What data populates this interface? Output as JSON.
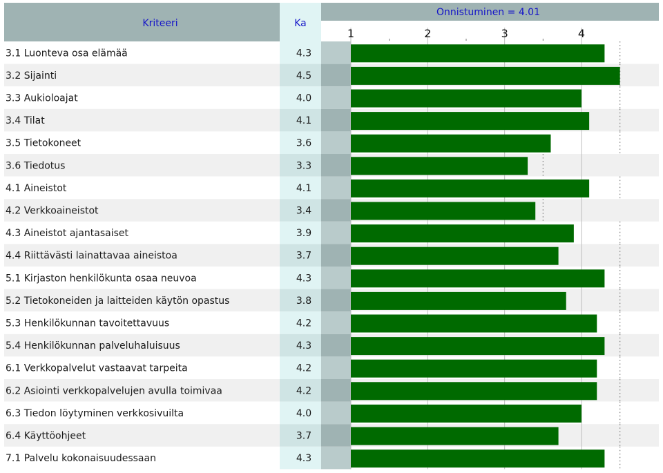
{
  "header": {
    "criteria_label": "Kriteeri",
    "mean_label": "Ka",
    "success_label": "Onnistuminen = 4.01"
  },
  "colors": {
    "bar": "#006a00",
    "header_bg": "#9fb3b3",
    "row_alt_bg": "#f0f0f0",
    "mean_col_bg": "#e0f4f4",
    "mean_col_alt_bg": "#cfe4e4",
    "gap_col_bg": "#9fb3b3",
    "gap_col_alt_bg": "#b9cbcb",
    "header_text": "#1515c8"
  },
  "chart_data": {
    "type": "bar",
    "orientation": "horizontal",
    "title": "Onnistuminen = 4.01",
    "x_ticks": [
      "1",
      "2",
      "3",
      "4"
    ],
    "xlim": [
      1,
      4.6
    ],
    "categories": [
      "3.1 Luonteva osa elämää",
      "3.2 Sijainti",
      "3.3 Aukioloajat",
      "3.4 Tilat",
      "3.5 Tietokoneet",
      "3.6 Tiedotus",
      "4.1 Aineistot",
      "4.2 Verkkoaineistot",
      "4.3 Aineistot ajantasaiset",
      "4.4 Riittävästi lainattavaa aineistoa",
      "5.1 Kirjaston henkilökunta osaa neuvoa",
      "5.2 Tietokoneiden ja laitteiden käytön opastus",
      "5.3 Henkilökunnan tavoitettavuus",
      "5.4 Henkilökunnan palveluhaluisuus",
      "6.1 Verkkopalvelut vastaavat tarpeita",
      "6.2 Asiointi verkkopalvelujen avulla toimivaa",
      "6.3 Tiedon löytyminen verkkosivuilta",
      "6.4 Käyttöohjeet",
      "7.1 Palvelu kokonaisuudessaan"
    ],
    "value_labels": [
      "4.3",
      "4.5",
      "4.0",
      "4.1",
      "3.6",
      "3.3",
      "4.1",
      "3.4",
      "3.9",
      "3.7",
      "4.3",
      "3.8",
      "4.2",
      "4.3",
      "4.2",
      "4.2",
      "4.0",
      "3.7",
      "4.3"
    ],
    "values": [
      4.3,
      4.5,
      4.0,
      4.1,
      3.6,
      3.3,
      4.1,
      3.4,
      3.9,
      3.7,
      4.3,
      3.8,
      4.2,
      4.3,
      4.2,
      4.2,
      4.0,
      3.7,
      4.3
    ],
    "reference_values": [
      4.5,
      4.5,
      4.5,
      4.5,
      4.5,
      3.5,
      4.5,
      3.5,
      4.5,
      4.5,
      4.5,
      4.5,
      4.5,
      4.5,
      4.5,
      4.5,
      4.5,
      4.5,
      4.5
    ],
    "legend": "none",
    "grid": true
  }
}
